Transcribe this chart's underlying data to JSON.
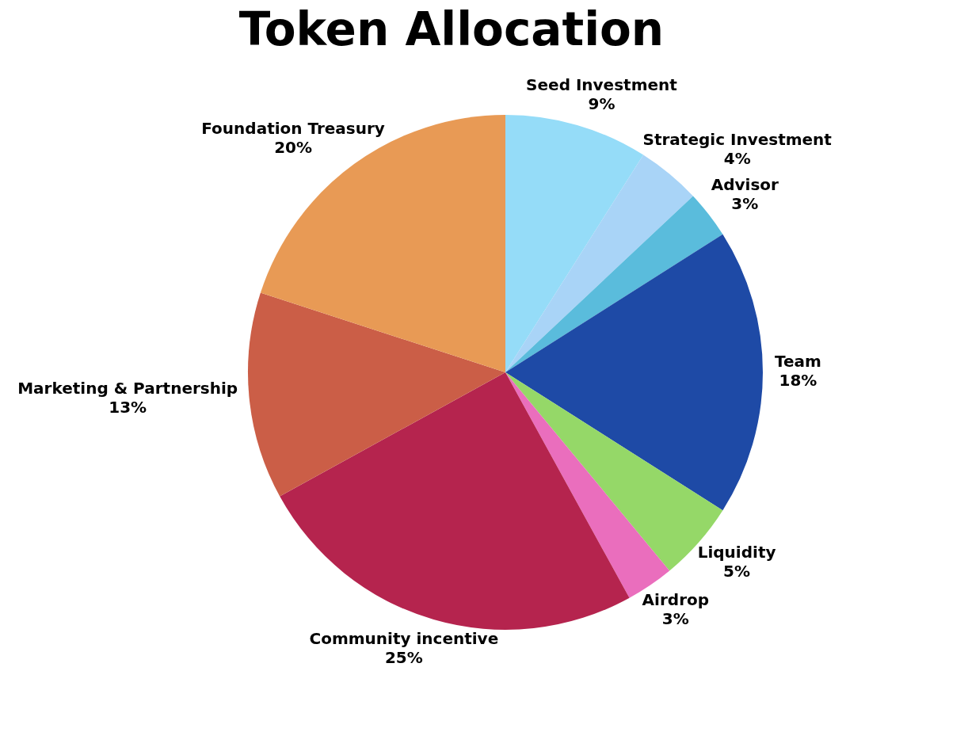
{
  "chart_data": {
    "type": "pie",
    "title": "Token Allocation",
    "categories": [
      "Seed Investment",
      "Strategic Investment",
      "Advisor",
      "Team",
      "Liquidity",
      "Airdrop",
      "Community incentive",
      "Marketing & Partnership",
      "Foundation Treasury"
    ],
    "values": [
      9,
      4,
      3,
      18,
      5,
      3,
      25,
      13,
      20
    ],
    "value_labels": [
      "9%",
      "4%",
      "3%",
      "18%",
      "5%",
      "3%",
      "25%",
      "13%",
      "20%"
    ],
    "colors": [
      "#95dcf8",
      "#a9d4f7",
      "#5abcdc",
      "#1e4aa6",
      "#95d868",
      "#ea6ebd",
      "#b5244e",
      "#cb5e47",
      "#e89a55"
    ],
    "legend": false
  }
}
